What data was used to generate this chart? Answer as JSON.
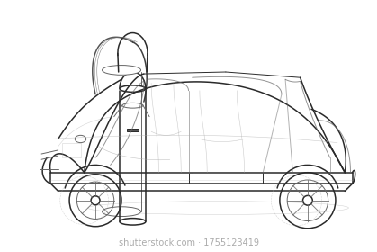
{
  "background_color": "#ffffff",
  "line_color": "#2a2a2a",
  "light_line_color": "#aaaaaa",
  "medium_line_color": "#666666",
  "title": "",
  "figsize": [
    4.19,
    2.8
  ],
  "dpi": 100,
  "watermark_text": "shutterstock.com · 1755123419",
  "watermark_color": "#888888",
  "watermark_fontsize": 7
}
